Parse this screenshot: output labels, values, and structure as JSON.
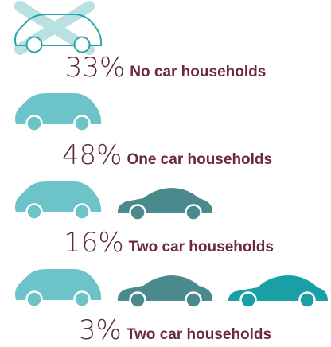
{
  "items": [
    {
      "share": "33%",
      "label": "No car households"
    },
    {
      "share": "48%",
      "label": "One car households"
    },
    {
      "share": "16%",
      "label": "Two car households"
    },
    {
      "share": "3%",
      "label": "Two car households"
    }
  ]
}
